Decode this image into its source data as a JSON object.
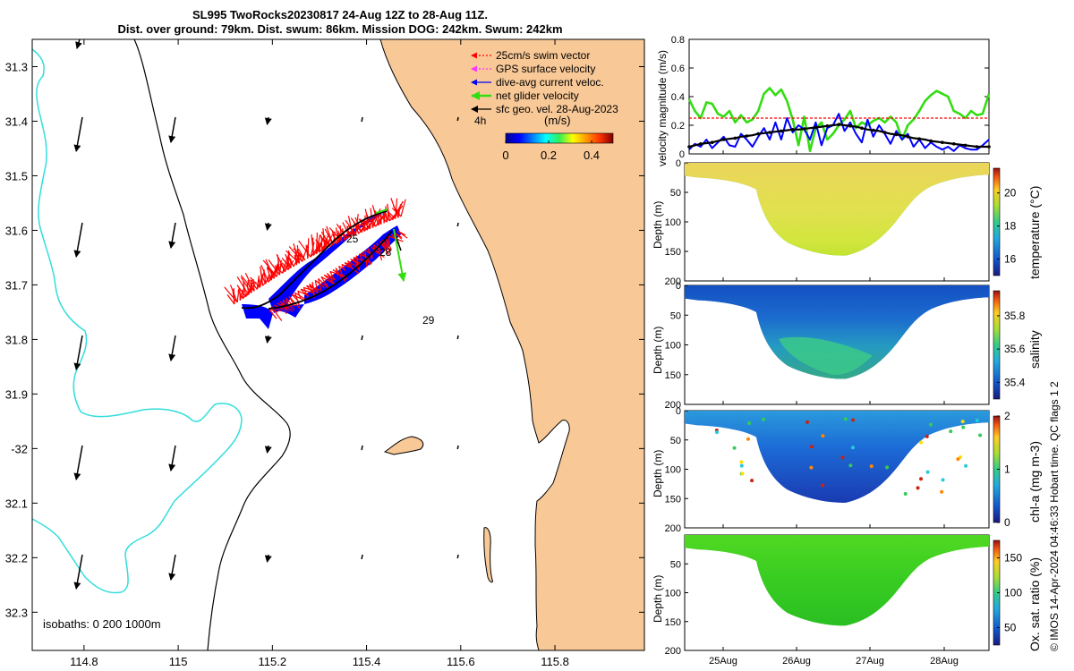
{
  "header": {
    "title_line1": "SL995 TwoRocks20230817 24-Aug 12Z to 28-Aug 11Z.",
    "title_line2": "Dist. over ground: 79km. Dist. swum: 86km. Mission DOG: 242km. Swum: 242km"
  },
  "colors": {
    "land": "#f8c897",
    "isobath_200": "#000000",
    "isobath_1000": "#33dddd",
    "swim": "#ff0000",
    "gps": "#ff33ff",
    "dive_avg": "#0000ff",
    "net_glider": "#33dd11",
    "geo": "#000000"
  },
  "chart_data": [
    {
      "id": "map",
      "type": "map",
      "lon_ticks": [
        "114.8",
        "115",
        "115.2",
        "115.4",
        "115.6",
        "115.8"
      ],
      "lat_ticks": [
        "31.3",
        "31.4",
        "31.5",
        "31.6",
        "31.7",
        "31.8",
        "31.9",
        "-32",
        "32.1",
        "32.2",
        "32.3"
      ],
      "xlim": [
        114.69,
        115.99
      ],
      "ylim": [
        -32.37,
        -31.25
      ],
      "legend": [
        {
          "label": "25cm/s swim vector",
          "color": "#ff0000"
        },
        {
          "label": "GPS surface velocity",
          "color": "#ff33ff"
        },
        {
          "label": "dive-avg current veloc.",
          "color": "#0000ff"
        },
        {
          "label": "net glider velocity",
          "color": "#33dd11"
        },
        {
          "label": "sfc geo. vel. 28-Aug-2023",
          "color": "#000000"
        }
      ],
      "colorbar": {
        "label": "(m/s)",
        "ticks": [
          "0",
          "0.2",
          "0.4"
        ],
        "note": "4h"
      },
      "track_day_labels": [
        "25",
        "28",
        "29"
      ],
      "isobaths_label": "isobaths: 0   200  1000m"
    },
    {
      "id": "velocity",
      "type": "line",
      "ylabel": "velocity magnitude (m/s)",
      "yticks": [
        "0",
        "0.2",
        "0.4",
        "0.6",
        "0.8"
      ],
      "ylim": [
        0,
        0.8
      ],
      "xlim": [
        0,
        4.95
      ],
      "x_day_offsets": [
        0,
        0.095,
        0.19,
        0.285,
        0.38,
        0.475,
        0.57,
        0.665,
        0.76,
        0.855,
        0.95,
        1.045,
        1.14,
        1.235,
        1.33,
        1.425,
        1.52,
        1.615,
        1.71,
        1.805,
        1.9,
        1.995,
        2.09,
        2.185,
        2.28,
        2.375,
        2.47,
        2.565,
        2.66,
        2.755,
        2.85,
        2.945,
        3.04,
        3.135,
        3.23,
        3.325,
        3.42,
        3.515,
        3.61,
        3.705,
        3.8,
        3.895,
        3.99,
        4.085,
        4.18,
        4.275,
        4.37,
        4.465,
        4.56,
        4.655,
        4.75,
        4.845,
        4.95
      ],
      "series": [
        {
          "name": "net glider velocity",
          "color": "#33dd11",
          "values": [
            0.38,
            0.3,
            0.25,
            0.36,
            0.35,
            0.28,
            0.26,
            0.3,
            0.22,
            0.27,
            0.22,
            0.24,
            0.3,
            0.42,
            0.46,
            0.41,
            0.45,
            0.37,
            0.24,
            0.06,
            0.26,
            0.02,
            0.18,
            0.22,
            0.1,
            0.14,
            0.2,
            0.24,
            0.3,
            0.18,
            0.22,
            0.2,
            0.23,
            0.25,
            0.22,
            0.26,
            0.22,
            0.1,
            0.2,
            0.24,
            0.3,
            0.37,
            0.41,
            0.44,
            0.42,
            0.4,
            0.3,
            0.28,
            0.25,
            0.3,
            0.27,
            0.28,
            0.42
          ]
        },
        {
          "name": "swim vector",
          "color": "#ff0000",
          "values": [
            0.25,
            0.25,
            0.25,
            0.25,
            0.25,
            0.25,
            0.25,
            0.25,
            0.25,
            0.25,
            0.25,
            0.25,
            0.25,
            0.25,
            0.25,
            0.25,
            0.25,
            0.25,
            0.25,
            0.25,
            0.25,
            0.25,
            0.25,
            0.25,
            0.25,
            0.25,
            0.25,
            0.25,
            0.25,
            0.25,
            0.25,
            0.25,
            0.25,
            0.25,
            0.25,
            0.25,
            0.25,
            0.25,
            0.25,
            0.25,
            0.25,
            0.25,
            0.25,
            0.25,
            0.25,
            0.25,
            0.25,
            0.25,
            0.25,
            0.25,
            0.25,
            0.25,
            0.25
          ]
        },
        {
          "name": "dive-avg current veloc.",
          "color": "#0000ff",
          "values": [
            0.03,
            0.07,
            0.05,
            0.1,
            0.04,
            0.08,
            0.12,
            0.06,
            0.05,
            0.14,
            0.1,
            0.05,
            0.12,
            0.18,
            0.1,
            0.22,
            0.1,
            0.25,
            0.15,
            0.2,
            0.17,
            0.1,
            0.22,
            0.06,
            0.18,
            0.2,
            0.28,
            0.16,
            0.22,
            0.14,
            0.08,
            0.24,
            0.12,
            0.2,
            0.14,
            0.07,
            0.16,
            0.1,
            0.14,
            0.05,
            0.1,
            0.04,
            0.08,
            0.05,
            0.03,
            0.05,
            0.02,
            0.06,
            0.04,
            0.03,
            0.03,
            0.06,
            0.1
          ]
        },
        {
          "name": "sfc geo. vel.",
          "color": "#000000",
          "values": [
            0.05,
            0.06,
            0.07,
            0.075,
            0.08,
            0.09,
            0.1,
            0.105,
            0.11,
            0.12,
            0.125,
            0.13,
            0.14,
            0.145,
            0.15,
            0.155,
            0.16,
            0.165,
            0.17,
            0.17,
            0.175,
            0.18,
            0.185,
            0.19,
            0.195,
            0.2,
            0.205,
            0.2,
            0.195,
            0.19,
            0.18,
            0.17,
            0.165,
            0.16,
            0.15,
            0.14,
            0.135,
            0.13,
            0.12,
            0.11,
            0.105,
            0.1,
            0.09,
            0.085,
            0.08,
            0.075,
            0.07,
            0.065,
            0.06,
            0.055,
            0.05,
            0.05,
            0.05
          ]
        }
      ]
    },
    {
      "id": "temperature",
      "type": "heatmap",
      "ylabel": "Depth (m)",
      "yticks": [
        "0",
        "50",
        "100",
        "150",
        "200"
      ],
      "ylim": [
        0,
        200
      ],
      "colorbar_label": "temperature (°C)",
      "colorbar_ticks": [
        "16",
        "18",
        "20"
      ],
      "range": [
        15,
        21.5
      ]
    },
    {
      "id": "salinity",
      "type": "heatmap",
      "ylabel": "Depth (m)",
      "yticks": [
        "0",
        "50",
        "100",
        "150",
        "200"
      ],
      "ylim": [
        0,
        200
      ],
      "colorbar_label": "salinity",
      "colorbar_ticks": [
        "35.4",
        "35.6",
        "35.8"
      ],
      "range": [
        35.3,
        35.95
      ]
    },
    {
      "id": "chla",
      "type": "heatmap",
      "ylabel": "Depth (m)",
      "yticks": [
        "0",
        "50",
        "100",
        "150",
        "200"
      ],
      "ylim": [
        0,
        200
      ],
      "colorbar_label": "chl-a (mg m-3)",
      "colorbar_ticks": [
        "0",
        "1",
        "2"
      ],
      "range": [
        0,
        2
      ]
    },
    {
      "id": "oxygen",
      "type": "heatmap",
      "ylabel": "Depth (m)",
      "yticks": [
        "50",
        "100",
        "150",
        "200"
      ],
      "ylim": [
        0,
        200
      ],
      "colorbar_label": "Ox. sat. ratio (%)",
      "colorbar_ticks": [
        "50",
        "100",
        "150"
      ],
      "range": [
        25,
        175
      ],
      "xticks": [
        "25Aug",
        "26Aug",
        "27Aug",
        "28Aug"
      ]
    }
  ],
  "footer": {
    "credit": "© IMOS 14-Apr-2024 04:46:33 Hobart time. QC flags 1  2"
  }
}
